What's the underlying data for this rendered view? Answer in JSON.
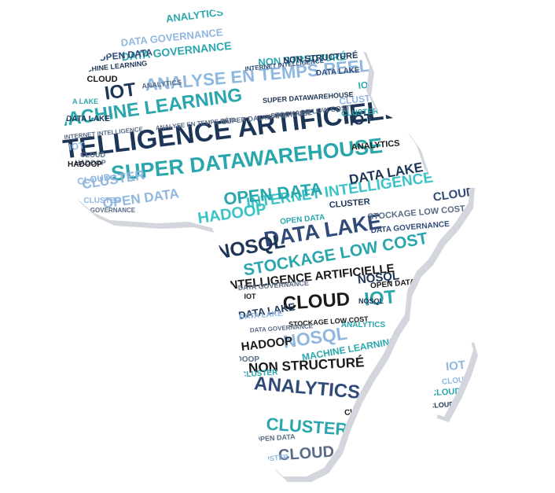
{
  "palette": {
    "navy": "#1d3557",
    "steel": "#2f4a78",
    "teal": "#2aa6ad",
    "sky": "#8fb7df",
    "cyan": "#3cc3c8",
    "slate": "#5a6b85",
    "black": "#1a1a1a",
    "shadow": "#d3d6dc"
  },
  "words": [
    {
      "text": "INTELLIGENCE ARTIFICIELLE",
      "color": "navy"
    },
    {
      "text": "SUPER DATAWAREHOUSE",
      "color": "teal"
    },
    {
      "text": "MACHINE LEARNING",
      "color": "teal"
    },
    {
      "text": "ANALYSE EN TEMPS RÉEL",
      "color": "sky"
    },
    {
      "text": "INTERNET INTELLIGENCE",
      "color": "cyan"
    },
    {
      "text": "DATA LAKE",
      "color": "steel"
    },
    {
      "text": "NOSQL",
      "color": "navy"
    },
    {
      "text": "STOCKAGE LOW COST",
      "color": "teal"
    },
    {
      "text": "OPEN DATA",
      "color": "teal"
    },
    {
      "text": "HADOOP",
      "color": "cyan"
    },
    {
      "text": "CLOUD",
      "color": "black"
    },
    {
      "text": "IOT",
      "color": "teal"
    },
    {
      "text": "NOSQL",
      "color": "sky"
    },
    {
      "text": "ANALYTICS",
      "color": "steel"
    },
    {
      "text": "CLUSTER",
      "color": "teal"
    },
    {
      "text": "CLOUD",
      "color": "slate"
    },
    {
      "text": "IOT",
      "color": "navy"
    },
    {
      "text": "INTELLIGENCE ARTIFICIELLE",
      "color": "black"
    },
    {
      "text": "NON STRUCTURÉ",
      "color": "black"
    },
    {
      "text": "DATA GOVERNANCE",
      "color": "teal"
    },
    {
      "text": "OPEN DATA",
      "color": "sky"
    },
    {
      "text": "CLUSTER",
      "color": "sky"
    },
    {
      "text": "DATA LAKE",
      "color": "navy"
    },
    {
      "text": "ANALYTICS",
      "color": "teal"
    },
    {
      "text": "NON STRUCTURÉ",
      "color": "teal"
    },
    {
      "text": "DATA GOVERNANCE",
      "color": "sky"
    },
    {
      "text": "OPEN DATA",
      "color": "steel"
    },
    {
      "text": "HADOOP",
      "color": "slate"
    },
    {
      "text": "IOT",
      "color": "sky"
    },
    {
      "text": "DATA LAKE",
      "color": "teal"
    },
    {
      "text": "IOT",
      "color": "navy"
    },
    {
      "text": "CLUSTER",
      "color": "sky"
    },
    {
      "text": "IOT",
      "color": "teal"
    },
    {
      "text": "CLOUD",
      "color": "black"
    },
    {
      "text": "ANALYTICS",
      "color": "black"
    },
    {
      "text": "HADOOP",
      "color": "black"
    },
    {
      "text": "MACHINE LEARNING",
      "color": "teal"
    },
    {
      "text": "CLUSTER",
      "color": "black"
    },
    {
      "text": "NOSQL",
      "color": "navy"
    },
    {
      "text": "CLOUD",
      "color": "steel"
    },
    {
      "text": "IOT",
      "color": "sky"
    },
    {
      "text": "CLUSTER",
      "color": "sky"
    },
    {
      "text": "CLOUD",
      "color": "teal"
    },
    {
      "text": "CLOUD",
      "color": "navy"
    },
    {
      "text": "CLOUD",
      "color": "sky"
    },
    {
      "text": "HADOOP",
      "color": "black"
    },
    {
      "text": "ANALYTICS",
      "color": "teal"
    },
    {
      "text": "NOSQL",
      "color": "navy"
    },
    {
      "text": "DATA LAKE",
      "color": "navy"
    },
    {
      "text": "DATA LAKE",
      "color": "sky"
    },
    {
      "text": "CLUSTER",
      "color": "sky"
    },
    {
      "text": "DATA GOVERNANCE",
      "color": "steel"
    },
    {
      "text": "STOCKAGE LOW COST",
      "color": "slate"
    },
    {
      "text": "CLUSTER",
      "color": "navy"
    },
    {
      "text": "OPEN DATA",
      "color": "black"
    },
    {
      "text": "OPEN DATA",
      "color": "teal"
    },
    {
      "text": "NON STRUCTURÉ",
      "color": "navy"
    },
    {
      "text": "HADOOP",
      "color": "slate"
    },
    {
      "text": "CLOUD",
      "color": "sky"
    },
    {
      "text": "IOT",
      "color": "teal"
    },
    {
      "text": "OPEN DATA",
      "color": "slate"
    },
    {
      "text": "DATA LAKE",
      "color": "navy"
    },
    {
      "text": "CLUSTER",
      "color": "teal"
    },
    {
      "text": "IOT",
      "color": "black"
    },
    {
      "text": "STOCKAGE LOW COST",
      "color": "black"
    },
    {
      "text": "SUPER DATAWAREHOUSE",
      "color": "navy"
    },
    {
      "text": "CLOUD",
      "color": "slate"
    },
    {
      "text": "DATA LAKE",
      "color": "steel"
    },
    {
      "text": "CLUSTER",
      "color": "teal"
    },
    {
      "text": "DATA GOVERNANCE",
      "color": "slate"
    },
    {
      "text": "MACHINE LEARNING",
      "color": "navy"
    },
    {
      "text": "ANALYTICS",
      "color": "slate"
    },
    {
      "text": "SUPER DATAWAREHOUSE",
      "color": "slate"
    },
    {
      "text": "STOCKAGE LOW COST",
      "color": "slate"
    },
    {
      "text": "INTERNET INTELLIGENCE",
      "color": "steel"
    },
    {
      "text": "ANALYSE EN TEMPS RÉEL",
      "color": "slate"
    },
    {
      "text": "INTERNET INTELLIGENCE",
      "color": "slate"
    },
    {
      "text": "DATA GOVERNANCE",
      "color": "slate"
    },
    {
      "text": "DATA GOVERNANCE",
      "color": "slate"
    }
  ]
}
